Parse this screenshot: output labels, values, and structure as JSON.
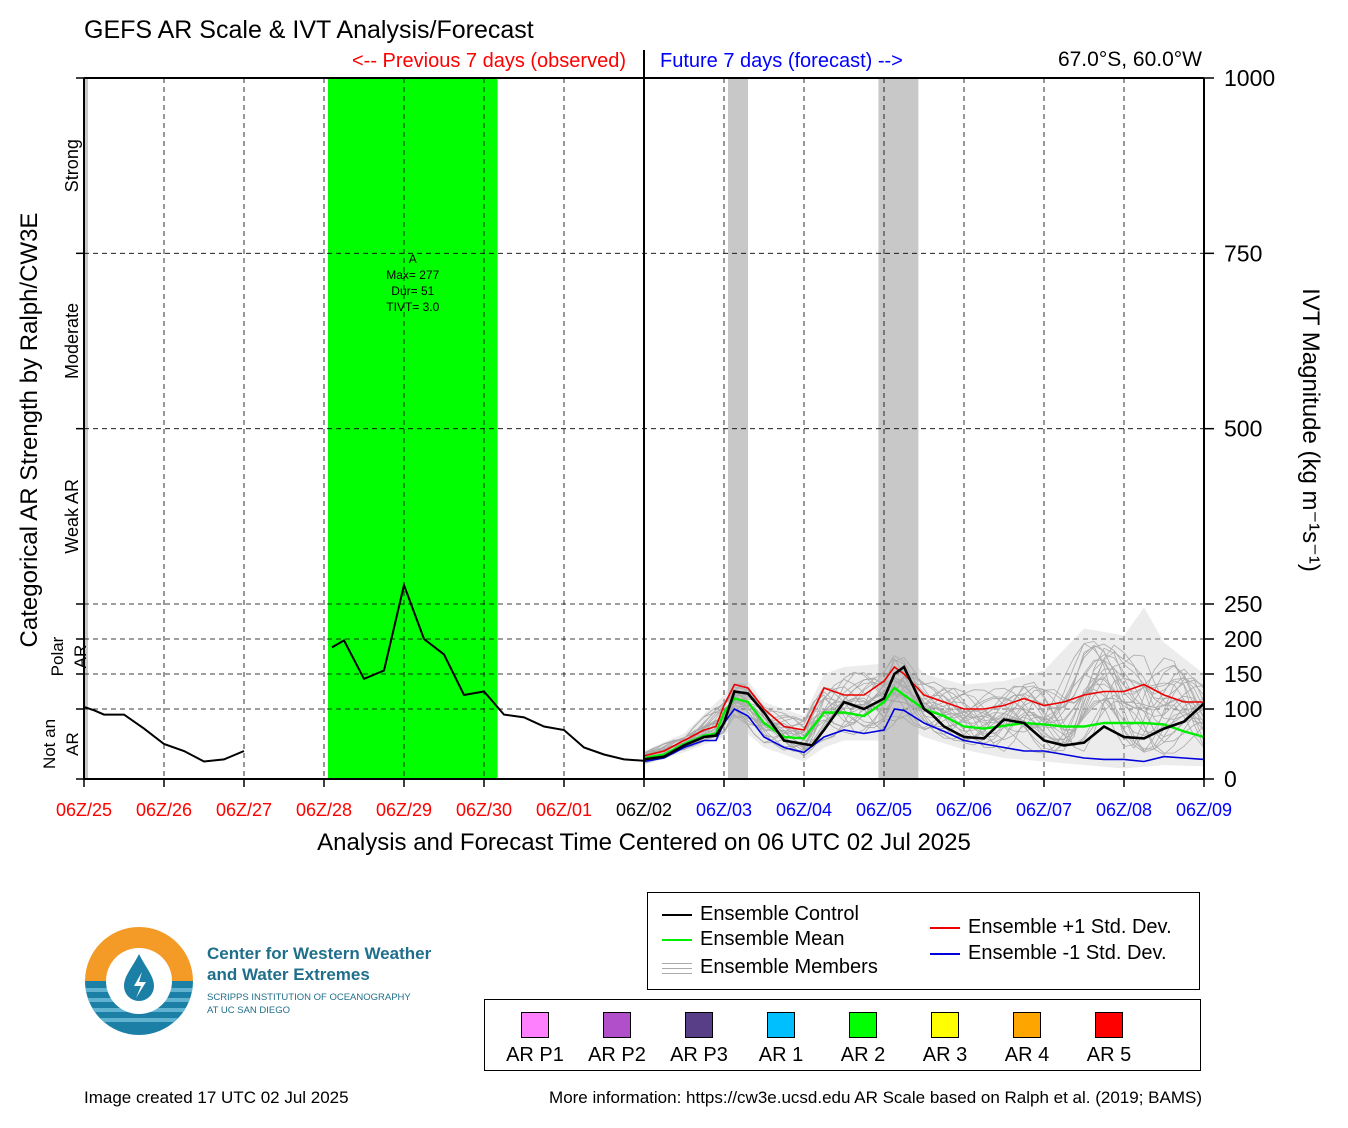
{
  "title": "GEFS AR Scale & IVT Analysis/Forecast",
  "header": {
    "previous_label": "<-- Previous 7 days (observed)",
    "future_label": "Future 7 days (forecast) -->",
    "location": "67.0°S, 60.0°W"
  },
  "colors": {
    "observed": "#ff0000",
    "forecast": "#0000ff",
    "ar_event": "#00ff00",
    "control": "#000000",
    "mean": "#00ee00",
    "plus_std": "#ee0000",
    "minus_std": "#0000dd",
    "members": "#aaaaaa",
    "spread": "#c8c8c8"
  },
  "chart_data": {
    "type": "line",
    "title": "GEFS AR Scale & IVT Analysis/Forecast",
    "xlabel": "Analysis and Forecast Time Centered on 06 UTC 02 Jul 2025",
    "y2label": "IVT Magnitude (kg m⁻¹s⁻¹)",
    "ylabel": "Categorical AR Strength by Ralph/CW3E",
    "ylim": [
      0,
      1000
    ],
    "y_ticks": [
      0,
      100,
      150,
      200,
      250,
      500,
      750,
      1000
    ],
    "y_scale_note": "piecewise",
    "x_unit": "days since 06Z/25",
    "x_ticks": [
      {
        "x": 0,
        "label": "06Z/25",
        "period": "observed"
      },
      {
        "x": 1,
        "label": "06Z/26",
        "period": "observed"
      },
      {
        "x": 2,
        "label": "06Z/27",
        "period": "observed"
      },
      {
        "x": 3,
        "label": "06Z/28",
        "period": "observed"
      },
      {
        "x": 4,
        "label": "06Z/29",
        "period": "observed"
      },
      {
        "x": 5,
        "label": "06Z/30",
        "period": "observed"
      },
      {
        "x": 6,
        "label": "06Z/01",
        "period": "observed"
      },
      {
        "x": 7,
        "label": "06Z/02",
        "period": "now"
      },
      {
        "x": 8,
        "label": "06Z/03",
        "period": "forecast"
      },
      {
        "x": 9,
        "label": "06Z/04",
        "period": "forecast"
      },
      {
        "x": 10,
        "label": "06Z/05",
        "period": "forecast"
      },
      {
        "x": 11,
        "label": "06Z/06",
        "period": "forecast"
      },
      {
        "x": 12,
        "label": "06Z/07",
        "period": "forecast"
      },
      {
        "x": 13,
        "label": "06Z/08",
        "period": "forecast"
      },
      {
        "x": 14,
        "label": "06Z/09",
        "period": "forecast"
      }
    ],
    "categories": [
      {
        "label": "Not an AR",
        "from": 0,
        "to": 100
      },
      {
        "label": "Polar AR",
        "from": 100,
        "to": 250
      },
      {
        "label": "Weak AR",
        "from": 250,
        "to": 500
      },
      {
        "label": "Moderate",
        "from": 500,
        "to": 750
      },
      {
        "label": "Strong",
        "from": 750,
        "to": 1000
      }
    ],
    "ar_event": {
      "x_start": 3.05,
      "x_end": 5.17,
      "label": "A",
      "max": "Max= 277",
      "dur": "Dur= 51",
      "tivt": "TIVT= 3.0"
    },
    "forecast_ar_bands": [
      {
        "x_start": 8.05,
        "x_end": 8.3
      },
      {
        "x_start": 9.93,
        "x_end": 10.43
      }
    ],
    "observed": {
      "name": "Ensemble Control",
      "segments": [
        [
          [
            0,
            103
          ],
          [
            0.13,
            98
          ],
          [
            0.25,
            92
          ],
          [
            0.5,
            92
          ],
          [
            0.75,
            72
          ],
          [
            1,
            50
          ],
          [
            1.25,
            40
          ],
          [
            1.5,
            25
          ],
          [
            1.75,
            28
          ],
          [
            2,
            40
          ]
        ],
        [
          [
            3.1,
            188
          ],
          [
            3.25,
            198
          ],
          [
            3.5,
            143
          ],
          [
            3.75,
            155
          ],
          [
            4,
            277
          ],
          [
            4.25,
            200
          ],
          [
            4.5,
            178
          ],
          [
            4.75,
            120
          ],
          [
            5,
            125
          ],
          [
            5.25,
            92
          ],
          [
            5.5,
            88
          ],
          [
            5.75,
            75
          ],
          [
            6,
            70
          ],
          [
            6.25,
            45
          ],
          [
            6.5,
            35
          ],
          [
            6.75,
            28
          ],
          [
            7,
            26
          ]
        ]
      ]
    },
    "forecast": {
      "control": [
        [
          7,
          28
        ],
        [
          7.25,
          32
        ],
        [
          7.5,
          48
        ],
        [
          7.75,
          60
        ],
        [
          7.9,
          62
        ],
        [
          8,
          80
        ],
        [
          8.13,
          125
        ],
        [
          8.3,
          122
        ],
        [
          8.5,
          95
        ],
        [
          8.75,
          55
        ],
        [
          9,
          50
        ],
        [
          9.1,
          48
        ],
        [
          9.25,
          70
        ],
        [
          9.5,
          110
        ],
        [
          9.75,
          100
        ],
        [
          10,
          115
        ],
        [
          10.13,
          150
        ],
        [
          10.25,
          160
        ],
        [
          10.5,
          100
        ],
        [
          10.6,
          92
        ],
        [
          10.75,
          75
        ],
        [
          11,
          60
        ],
        [
          11.25,
          58
        ],
        [
          11.5,
          85
        ],
        [
          11.75,
          80
        ],
        [
          12,
          55
        ],
        [
          12.25,
          48
        ],
        [
          12.5,
          52
        ],
        [
          12.75,
          75
        ],
        [
          13,
          60
        ],
        [
          13.25,
          58
        ],
        [
          13.5,
          72
        ],
        [
          13.75,
          82
        ],
        [
          14,
          108
        ]
      ],
      "mean": [
        [
          7,
          30
        ],
        [
          7.25,
          35
        ],
        [
          7.5,
          50
        ],
        [
          7.75,
          62
        ],
        [
          7.9,
          65
        ],
        [
          8,
          95
        ],
        [
          8.13,
          115
        ],
        [
          8.3,
          110
        ],
        [
          8.5,
          80
        ],
        [
          8.75,
          60
        ],
        [
          9,
          58
        ],
        [
          9.25,
          95
        ],
        [
          9.5,
          95
        ],
        [
          9.75,
          90
        ],
        [
          10,
          110
        ],
        [
          10.13,
          130
        ],
        [
          10.25,
          120
        ],
        [
          10.5,
          100
        ],
        [
          10.75,
          90
        ],
        [
          11,
          75
        ],
        [
          11.25,
          72
        ],
        [
          11.5,
          76
        ],
        [
          11.75,
          80
        ],
        [
          12,
          78
        ],
        [
          12.25,
          75
        ],
        [
          12.5,
          75
        ],
        [
          12.75,
          80
        ],
        [
          13,
          80
        ],
        [
          13.25,
          80
        ],
        [
          13.5,
          78
        ],
        [
          13.75,
          68
        ],
        [
          14,
          60
        ]
      ],
      "plus_std": [
        [
          7,
          33
        ],
        [
          7.25,
          40
        ],
        [
          7.5,
          55
        ],
        [
          7.75,
          70
        ],
        [
          7.9,
          75
        ],
        [
          8,
          105
        ],
        [
          8.13,
          135
        ],
        [
          8.3,
          130
        ],
        [
          8.5,
          100
        ],
        [
          8.75,
          75
        ],
        [
          9,
          70
        ],
        [
          9.25,
          130
        ],
        [
          9.5,
          120
        ],
        [
          9.75,
          120
        ],
        [
          10,
          140
        ],
        [
          10.13,
          160
        ],
        [
          10.25,
          150
        ],
        [
          10.5,
          120
        ],
        [
          10.75,
          110
        ],
        [
          11,
          100
        ],
        [
          11.25,
          100
        ],
        [
          11.5,
          105
        ],
        [
          11.75,
          115
        ],
        [
          12,
          105
        ],
        [
          12.25,
          110
        ],
        [
          12.5,
          120
        ],
        [
          12.75,
          125
        ],
        [
          13,
          125
        ],
        [
          13.25,
          135
        ],
        [
          13.5,
          120
        ],
        [
          13.75,
          110
        ],
        [
          14,
          110
        ]
      ],
      "minus_std": [
        [
          7,
          25
        ],
        [
          7.25,
          30
        ],
        [
          7.5,
          45
        ],
        [
          7.75,
          55
        ],
        [
          7.9,
          55
        ],
        [
          8,
          80
        ],
        [
          8.13,
          100
        ],
        [
          8.3,
          90
        ],
        [
          8.5,
          60
        ],
        [
          8.75,
          45
        ],
        [
          9,
          38
        ],
        [
          9.25,
          60
        ],
        [
          9.5,
          70
        ],
        [
          9.75,
          65
        ],
        [
          10,
          70
        ],
        [
          10.13,
          100
        ],
        [
          10.25,
          98
        ],
        [
          10.5,
          80
        ],
        [
          10.75,
          68
        ],
        [
          11,
          55
        ],
        [
          11.25,
          50
        ],
        [
          11.5,
          45
        ],
        [
          11.75,
          40
        ],
        [
          12,
          40
        ],
        [
          12.25,
          35
        ],
        [
          12.5,
          30
        ],
        [
          12.75,
          28
        ],
        [
          13,
          28
        ],
        [
          13.25,
          25
        ],
        [
          13.5,
          32
        ],
        [
          13.75,
          30
        ],
        [
          14,
          28
        ]
      ],
      "members_envelope": {
        "upper": [
          [
            7,
            40
          ],
          [
            7.5,
            65
          ],
          [
            8,
            120
          ],
          [
            8.13,
            145
          ],
          [
            8.3,
            140
          ],
          [
            8.5,
            110
          ],
          [
            9,
            90
          ],
          [
            9.25,
            150
          ],
          [
            9.5,
            160
          ],
          [
            10,
            165
          ],
          [
            10.13,
            190
          ],
          [
            10.25,
            185
          ],
          [
            10.5,
            150
          ],
          [
            11,
            135
          ],
          [
            11.5,
            140
          ],
          [
            12,
            155
          ],
          [
            12.25,
            185
          ],
          [
            12.5,
            215
          ],
          [
            13,
            205
          ],
          [
            13.25,
            245
          ],
          [
            13.5,
            195
          ],
          [
            14,
            150
          ]
        ],
        "lower": [
          [
            7,
            20
          ],
          [
            7.5,
            38
          ],
          [
            8,
            60
          ],
          [
            8.13,
            80
          ],
          [
            8.5,
            45
          ],
          [
            9,
            25
          ],
          [
            9.25,
            45
          ],
          [
            9.5,
            55
          ],
          [
            10,
            55
          ],
          [
            10.25,
            75
          ],
          [
            10.5,
            60
          ],
          [
            11,
            42
          ],
          [
            11.5,
            30
          ],
          [
            12,
            25
          ],
          [
            12.5,
            20
          ],
          [
            13,
            15
          ],
          [
            13.5,
            20
          ],
          [
            14,
            18
          ]
        ]
      }
    }
  },
  "legend": {
    "control": "Ensemble Control",
    "mean": "Ensemble Mean",
    "members": "Ensemble Members",
    "plus_std": "Ensemble +1 Std. Dev.",
    "minus_std": "Ensemble -1 Std. Dev."
  },
  "scale_legend": [
    {
      "label": "AR P1",
      "color": "#ff80ff"
    },
    {
      "label": "AR P2",
      "color": "#b14fca"
    },
    {
      "label": "AR P3",
      "color": "#583e86"
    },
    {
      "label": "AR 1",
      "color": "#00bfff"
    },
    {
      "label": "AR 2",
      "color": "#00ff00"
    },
    {
      "label": "AR 3",
      "color": "#ffff00"
    },
    {
      "label": "AR 4",
      "color": "#ffa500"
    },
    {
      "label": "AR 5",
      "color": "#ff0000"
    }
  ],
  "logo": {
    "line1": "Center for Western Weather",
    "line2": "and Water Extremes",
    "line3": "SCRIPPS INSTITUTION OF OCEANOGRAPHY",
    "line4": "AT UC SAN DIEGO"
  },
  "footer": {
    "created": "Image created 17 UTC 02 Jul 2025",
    "more_info": "More information: https://cw3e.ucsd.edu AR Scale based on Ralph et al. (2019; BAMS)"
  }
}
